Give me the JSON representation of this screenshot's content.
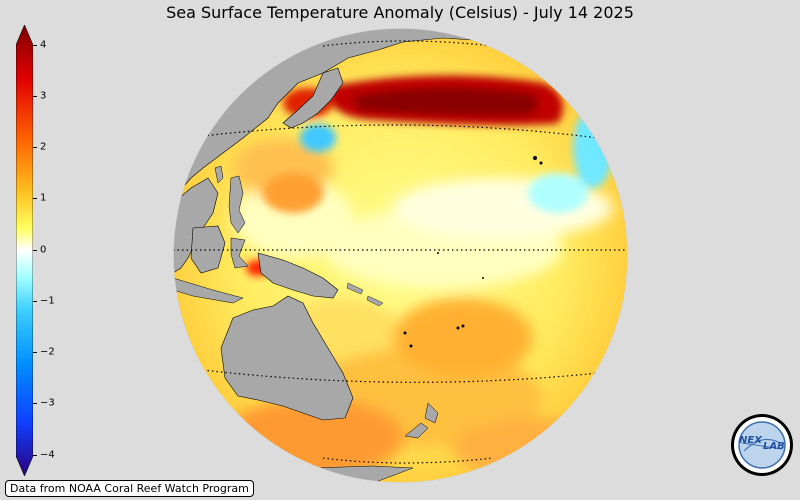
{
  "title": "Sea Surface Temperature Anomaly (Celsius) - July 14 2025",
  "colorbar": {
    "ticks": [
      "4",
      "3",
      "2",
      "1",
      "0",
      "−1",
      "−2",
      "−3",
      "−4"
    ],
    "range": [
      -4,
      4
    ],
    "colors": [
      "#2a0080",
      "#1040ff",
      "#00a0ff",
      "#60ffff",
      "#ffffff",
      "#ffff30",
      "#ffa020",
      "#ff2000",
      "#800000"
    ]
  },
  "map": {
    "projection": "orthographic",
    "center": "Western/Central Pacific",
    "land_color": "#a8a8a8",
    "ocean_background": "#ffff88"
  },
  "credit": "Data from NOAA Coral Reef Watch Program",
  "logo": {
    "icon": "nexlab-logo",
    "text_left": "NEX",
    "text_right": "LAB"
  }
}
